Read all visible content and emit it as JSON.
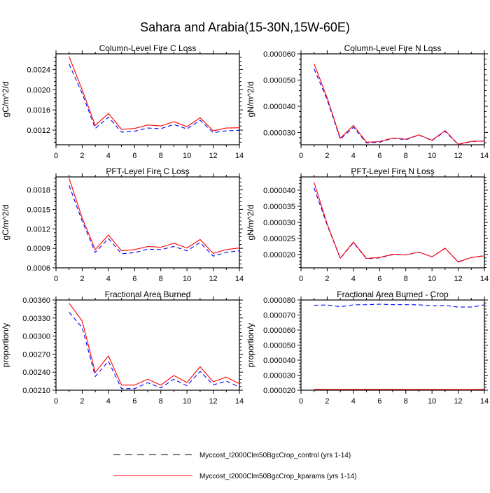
{
  "chart_data": {
    "type": "line",
    "title": "Sahara and Arabia(15-30N,15W-60E)",
    "legend": {
      "placement": "bottom-center",
      "entries": [
        {
          "label": "Myccost_I2000Clm50BgcCrop_control (yrs 1-14)",
          "color": "#0000ff",
          "style": "dashed"
        },
        {
          "label": "Myccost_I2000Clm50BgcCrop_kparams (yrs 1-14)",
          "color": "#ff0000",
          "style": "solid"
        }
      ]
    },
    "x": [
      1,
      2,
      3,
      4,
      5,
      6,
      7,
      8,
      9,
      10,
      11,
      12,
      13,
      14
    ],
    "xlim": [
      0,
      14
    ],
    "xticks": [
      0,
      2,
      4,
      6,
      8,
      10,
      12,
      14
    ],
    "panels": [
      {
        "title": "Column-Level Fire C Loss",
        "ylabel": "gC/m^2/d",
        "ylim": [
          0.00091,
          0.00271
        ],
        "yticks": [
          0.0012,
          0.0016,
          0.002,
          0.0024
        ],
        "ytick_labels": [
          "0.0012",
          "0.0016",
          "0.0020",
          "0.0024"
        ],
        "series": [
          {
            "name": "control",
            "values": [
              0.002507,
              0.001927,
              0.001232,
              0.001455,
              0.00116,
              0.001177,
              0.001241,
              0.001228,
              0.001311,
              0.001223,
              0.001395,
              0.001149,
              0.001186,
              0.001195
            ]
          },
          {
            "name": "kparams",
            "values": [
              0.002655,
              0.001997,
              0.001293,
              0.001529,
              0.001214,
              0.001232,
              0.001302,
              0.001283,
              0.001367,
              0.001269,
              0.001446,
              0.001186,
              0.001241,
              0.001246
            ]
          }
        ]
      },
      {
        "title": "Column-Level Fire N Loss",
        "ylabel": "gN/m^2/d",
        "ylim": [
          2.53e-05,
          6e-05
        ],
        "yticks": [
          3e-05,
          4e-05,
          5e-05,
          6e-05
        ],
        "ytick_labels": [
          "0.000030",
          "0.000040",
          "0.000050",
          "0.000060"
        ],
        "series": [
          {
            "name": "control",
            "values": [
              5.43e-05,
              4.25e-05,
              2.74e-05,
              3.2e-05,
              2.6e-05,
              2.63e-05,
              2.78e-05,
              2.72e-05,
              2.9e-05,
              2.69e-05,
              3.04e-05,
              2.54e-05,
              2.65e-05,
              2.67e-05
            ]
          },
          {
            "name": "kparams",
            "values": [
              5.62e-05,
              4.32e-05,
              2.78e-05,
              3.27e-05,
              2.63e-05,
              2.65e-05,
              2.79e-05,
              2.74e-05,
              2.91e-05,
              2.7e-05,
              3.07e-05,
              2.55e-05,
              2.66e-05,
              2.67e-05
            ]
          }
        ]
      },
      {
        "title": "PFT-Level Fire C Loss",
        "ylabel": "gC/m^2/d",
        "ylim": [
          0.0006,
          0.002
        ],
        "yticks": [
          0.0006,
          0.0009,
          0.0012,
          0.0015,
          0.0018
        ],
        "ytick_labels": [
          "0.0006",
          "0.0009",
          "0.0012",
          "0.0015",
          "0.0018"
        ],
        "series": [
          {
            "name": "control",
            "values": [
              0.00187,
              0.001321,
              0.000838,
              0.001051,
              0.000816,
              0.000834,
              0.000888,
              0.000881,
              0.000928,
              0.000863,
              0.000989,
              0.00078,
              0.000838,
              0.000863
            ]
          },
          {
            "name": "kparams",
            "values": [
              0.00198,
              0.001368,
              0.000881,
              0.001105,
              0.000863,
              0.000881,
              0.000928,
              0.000917,
              0.000978,
              0.000906,
              0.001036,
              0.000823,
              0.000881,
              0.000906
            ]
          }
        ]
      },
      {
        "title": "PFT-Level Fire N Loss",
        "ylabel": "gN/m^2/d",
        "ylim": [
          1.59e-05,
          4.41e-05
        ],
        "yticks": [
          2e-05,
          2.5e-05,
          3e-05,
          3.5e-05,
          4e-05
        ],
        "ytick_labels": [
          "0.000020",
          "0.000025",
          "0.000030",
          "0.000035",
          "0.000040"
        ],
        "series": [
          {
            "name": "control",
            "values": [
              4.07e-05,
              2.92e-05,
              1.88e-05,
              2.37e-05,
              1.87e-05,
              1.9e-05,
              2e-05,
              1.99e-05,
              2.08e-05,
              1.93e-05,
              2.19e-05,
              1.78e-05,
              1.91e-05,
              1.97e-05
            ]
          },
          {
            "name": "kparams",
            "values": [
              4.24e-05,
              2.95e-05,
              1.89e-05,
              2.39e-05,
              1.88e-05,
              1.91e-05,
              2.01e-05,
              1.99e-05,
              2.08e-05,
              1.93e-05,
              2.2e-05,
              1.77e-05,
              1.91e-05,
              1.96e-05
            ]
          }
        ]
      },
      {
        "title": "Fractional Area Burned",
        "ylabel": "proportion/y",
        "ylim": [
          0.0021,
          0.0036
        ],
        "yticks": [
          0.0021,
          0.0024,
          0.0027,
          0.003,
          0.0033,
          0.0036
        ],
        "ytick_labels": [
          "0.00210",
          "0.00240",
          "0.00270",
          "0.00300",
          "0.00330",
          "0.00360"
        ],
        "series": [
          {
            "name": "control",
            "values": [
              0.003395,
              0.003143,
              0.002329,
              0.002581,
              0.002127,
              0.002127,
              0.002224,
              0.002139,
              0.002282,
              0.002174,
              0.002414,
              0.002189,
              0.002251,
              0.002154
            ]
          },
          {
            "name": "kparams",
            "values": [
              0.003546,
              0.003251,
              0.002395,
              0.00267,
              0.002185,
              0.002185,
              0.002282,
              0.002185,
              0.002344,
              0.002228,
              0.002491,
              0.00224,
              0.002317,
              0.002209
            ]
          }
        ]
      },
      {
        "title": "Fractional Area Burned - Crop",
        "ylabel": "proportion/y",
        "ylim": [
          2e-05,
          8e-05
        ],
        "yticks": [
          2e-05,
          3e-05,
          4e-05,
          5e-05,
          6e-05,
          7e-05,
          8e-05
        ],
        "ytick_labels": [
          "0.000020",
          "0.000030",
          "0.000040",
          "0.000050",
          "0.000060",
          "0.000070",
          "0.000080"
        ],
        "series": [
          {
            "name": "control",
            "values": [
              7.65e-05,
              7.67e-05,
              7.55e-05,
              7.68e-05,
              7.69e-05,
              7.72e-05,
              7.69e-05,
              7.69e-05,
              7.68e-05,
              7.62e-05,
              7.64e-05,
              7.53e-05,
              7.53e-05,
              7.68e-05
            ]
          },
          {
            "name": "kparams",
            "values": [
              2.06e-05,
              2.07e-05,
              2.05e-05,
              2.06e-05,
              2.06e-05,
              2.06e-05,
              2.06e-05,
              2.05e-05,
              2.05e-05,
              2.05e-05,
              2.05e-05,
              2.04e-05,
              2.04e-05,
              2.06e-05
            ]
          }
        ]
      }
    ]
  }
}
